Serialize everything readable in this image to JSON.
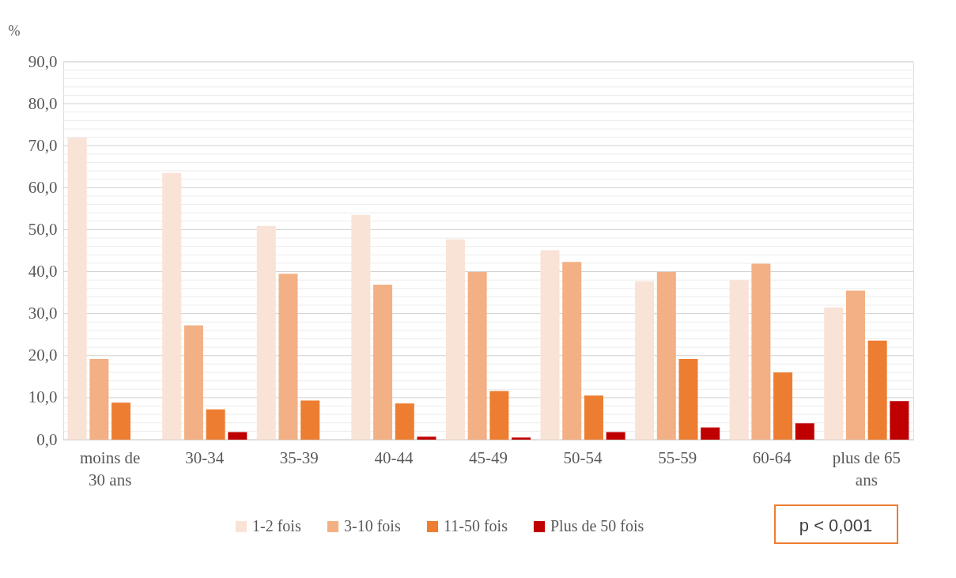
{
  "chart_data": {
    "type": "bar",
    "ylabel": "%",
    "categories": [
      "moins de 30 ans",
      "30-34",
      "35-39",
      "40-44",
      "45-49",
      "50-54",
      "55-59",
      "60-64",
      "plus de 65 ans"
    ],
    "series": [
      {
        "name": "1-2 fois",
        "color": "#f9e3d6",
        "values": [
          71.9,
          63.5,
          50.9,
          53.5,
          47.7,
          45.1,
          37.7,
          38.0,
          31.5
        ]
      },
      {
        "name": "3-10 fois",
        "color": "#f2b084",
        "values": [
          19.2,
          27.2,
          39.5,
          36.9,
          39.9,
          42.3,
          39.9,
          41.9,
          35.5
        ]
      },
      {
        "name": "11-50 fois",
        "color": "#ed7d31",
        "values": [
          8.8,
          7.2,
          9.3,
          8.6,
          11.6,
          10.5,
          19.2,
          16.0,
          23.6
        ]
      },
      {
        "name": "Plus de 50 fois",
        "color": "#c00000",
        "values": [
          null,
          1.8,
          null,
          0.7,
          0.5,
          1.8,
          2.9,
          3.9,
          9.2
        ]
      }
    ],
    "ylim": [
      0,
      90
    ],
    "yticks": [
      {
        "value": 0,
        "label": "0,0"
      },
      {
        "value": 2,
        "label": null
      },
      {
        "value": 4,
        "label": null
      },
      {
        "value": 6,
        "label": null
      },
      {
        "value": 8,
        "label": null
      },
      {
        "value": 10,
        "label": "10,0"
      },
      {
        "value": 12,
        "label": null
      },
      {
        "value": 14,
        "label": null
      },
      {
        "value": 16,
        "label": null
      },
      {
        "value": 18,
        "label": null
      },
      {
        "value": 20,
        "label": "20,0"
      },
      {
        "value": 22,
        "label": null
      },
      {
        "value": 24,
        "label": null
      },
      {
        "value": 26,
        "label": null
      },
      {
        "value": 28,
        "label": null
      },
      {
        "value": 30,
        "label": "30,0"
      },
      {
        "value": 32,
        "label": null
      },
      {
        "value": 34,
        "label": null
      },
      {
        "value": 36,
        "label": null
      },
      {
        "value": 38,
        "label": null
      },
      {
        "value": 40,
        "label": "40,0"
      },
      {
        "value": 42,
        "label": null
      },
      {
        "value": 44,
        "label": null
      },
      {
        "value": 46,
        "label": null
      },
      {
        "value": 48,
        "label": null
      },
      {
        "value": 50,
        "label": "50,0"
      },
      {
        "value": 52,
        "label": null
      },
      {
        "value": 54,
        "label": null
      },
      {
        "value": 56,
        "label": null
      },
      {
        "value": 58,
        "label": null
      },
      {
        "value": 60,
        "label": "60,0"
      },
      {
        "value": 62,
        "label": null
      },
      {
        "value": 64,
        "label": null
      },
      {
        "value": 66,
        "label": null
      },
      {
        "value": 68,
        "label": null
      },
      {
        "value": 70,
        "label": "70,0"
      },
      {
        "value": 72,
        "label": null
      },
      {
        "value": 74,
        "label": null
      },
      {
        "value": 76,
        "label": null
      },
      {
        "value": 78,
        "label": null
      },
      {
        "value": 80,
        "label": "80,0"
      },
      {
        "value": 82,
        "label": null
      },
      {
        "value": 84,
        "label": null
      },
      {
        "value": 86,
        "label": null
      },
      {
        "value": 88,
        "label": null
      },
      {
        "value": 90,
        "label": "90,0"
      }
    ],
    "grid": true,
    "legend": "bottom",
    "annotations": [
      "p < 0,001"
    ]
  }
}
